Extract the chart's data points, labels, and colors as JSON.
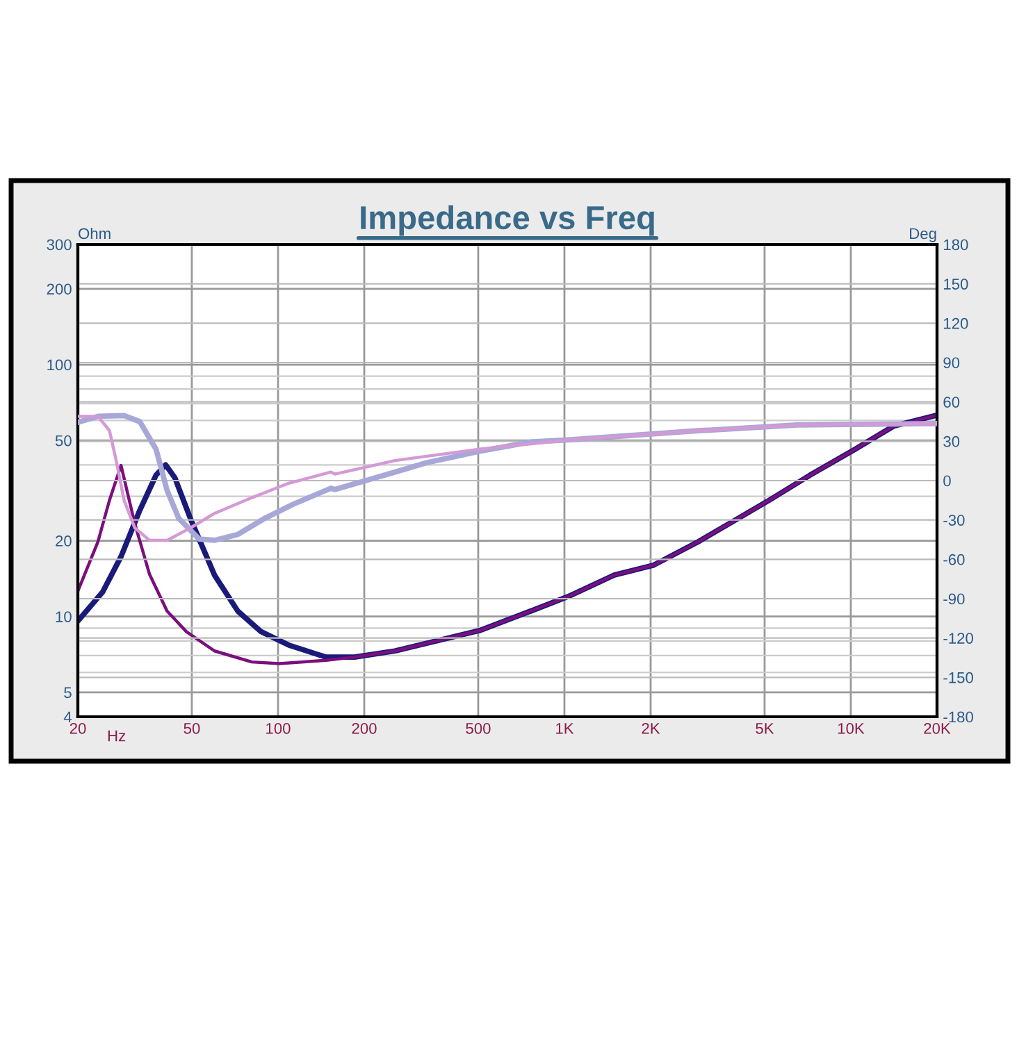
{
  "chart_data": {
    "type": "line",
    "title": "Impedance vs Freq",
    "xlabel": "Hz",
    "ylabel": "Ohm",
    "y2label": "Deg",
    "log": "xy",
    "grid": true,
    "xlim": [
      20,
      20000
    ],
    "xticks": [
      20,
      50,
      100,
      200,
      500,
      {
        "value": 1000,
        "label": "1K"
      },
      {
        "value": 2000,
        "label": "2K"
      },
      {
        "value": 5000,
        "label": "5K"
      },
      {
        "value": 10000,
        "label": "10K"
      },
      {
        "value": 20000,
        "label": "20K"
      }
    ],
    "ylim": [
      4,
      300
    ],
    "yticks": [
      4,
      5,
      10,
      20,
      50,
      100,
      200,
      300
    ],
    "y2lim": [
      -180,
      180
    ],
    "y2ticks": [
      -180,
      -150,
      -120,
      -90,
      -60,
      -30,
      0,
      30,
      60,
      90,
      120,
      150,
      180
    ],
    "series": [
      {
        "color": "#7b0f7d",
        "x": [
          20,
          23.5,
          25.8,
          28.3,
          31.6,
          35.6,
          41,
          47.9,
          60,
          81,
          101,
          147,
          185,
          256,
          506,
          761,
          1030,
          1493,
          2050,
          2930,
          5200,
          7200,
          10300,
          14100,
          20000
        ],
        "values": [
          12.6,
          19.8,
          29,
          39.8,
          23.4,
          14.7,
          10.5,
          8.7,
          7.3,
          6.6,
          6.5,
          6.7,
          6.9,
          7.3,
          8.8,
          10.5,
          12,
          14.6,
          16,
          19.8,
          29,
          36.4,
          46,
          57,
          63
        ]
      },
      {
        "color": "#1a1a7a",
        "x": [
          20,
          24.4,
          28.3,
          32.9,
          37.5,
          40.5,
          43.6,
          49.5,
          60,
          72.4,
          87.3,
          109,
          147,
          185,
          256,
          506,
          761,
          1030,
          1493,
          2050,
          2930,
          5200,
          7200,
          10300,
          14100,
          20000
        ],
        "values": [
          9.6,
          12.5,
          17.3,
          26.4,
          36.4,
          40,
          35.6,
          24.4,
          14.6,
          10.5,
          8.7,
          7.7,
          6.9,
          6.9,
          7.3,
          8.8,
          10.5,
          12,
          14.6,
          16,
          19.8,
          29,
          36.4,
          46,
          57,
          63
        ]
      },
      {
        "color": "#d49ad6",
        "axis": "y2",
        "x": [
          20,
          23.5,
          25.8,
          27.3,
          29,
          31.6,
          35.6,
          41,
          49.5,
          60,
          81,
          109,
          153,
          158,
          256,
          506,
          1030,
          2930,
          6500,
          20000
        ],
        "values": [
          49,
          49,
          38,
          14,
          -15,
          -36,
          -45.5,
          -45.5,
          -36,
          -25,
          -13,
          -2,
          6.5,
          5,
          15.3,
          24,
          31,
          38,
          42.4,
          43.5
        ]
      },
      {
        "color": "#a8a8d8",
        "axis": "y2",
        "x": [
          20,
          23.5,
          29,
          32.9,
          37.5,
          41,
          45,
          53,
          60,
          72.4,
          90,
          113,
          153,
          158,
          256,
          330,
          506,
          761,
          1030,
          2930,
          6500,
          20000
        ],
        "values": [
          44.5,
          49,
          49.6,
          45,
          24,
          -7.5,
          -28.7,
          -44.5,
          -45.5,
          -41,
          -28.7,
          -18,
          -5.8,
          -6.8,
          6.5,
          13.6,
          22.4,
          29.4,
          31,
          38,
          42.4,
          43.5
        ]
      }
    ]
  }
}
